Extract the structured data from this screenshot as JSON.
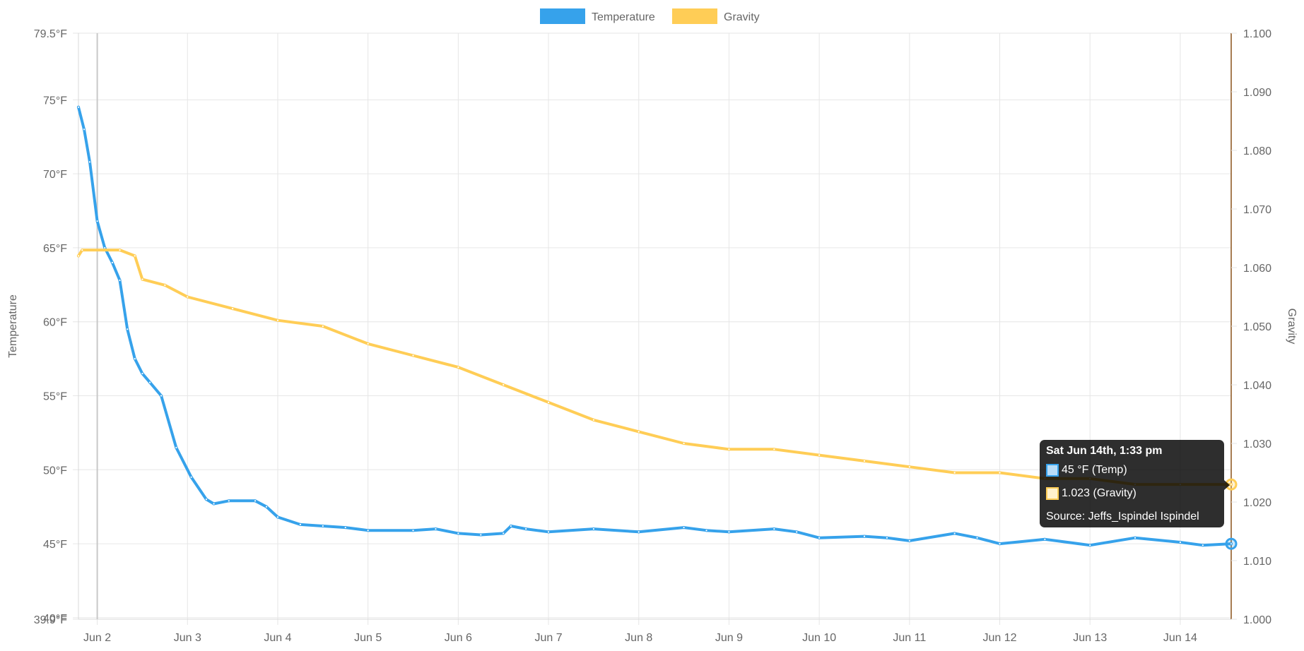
{
  "chart_data": {
    "type": "line",
    "title": "",
    "legend": {
      "position": "top",
      "items": [
        {
          "name": "Temperature",
          "color": "#36a2eb"
        },
        {
          "name": "Gravity",
          "color": "#ffcd56"
        }
      ]
    },
    "x_axis": {
      "type": "time",
      "range": [
        "2025-06-01T19:00",
        "2025-06-14T13:33"
      ],
      "tick_labels": [
        "Jun 2",
        "Jun 3",
        "Jun 4",
        "Jun 5",
        "Jun 6",
        "Jun 7",
        "Jun 8",
        "Jun 9",
        "Jun 10",
        "Jun 11",
        "Jun 12",
        "Jun 13",
        "Jun 14"
      ],
      "grid": true
    },
    "y_left": {
      "label": "Temperature",
      "unit": "°F",
      "range": [
        39.9,
        79.5
      ],
      "tick_labels": [
        "79.5°F",
        "75°F",
        "70°F",
        "65°F",
        "60°F",
        "55°F",
        "50°F",
        "45°F",
        "40°F",
        "39.9°F"
      ],
      "grid": true
    },
    "y_right": {
      "label": "Gravity",
      "range": [
        1.0,
        1.1
      ],
      "tick_labels": [
        "1.100",
        "1.090",
        "1.080",
        "1.070",
        "1.060",
        "1.050",
        "1.040",
        "1.030",
        "1.020",
        "1.010",
        "1.000"
      ]
    },
    "series": [
      {
        "name": "Temperature",
        "axis": "left",
        "color": "#36a2eb",
        "points": [
          [
            "2025-06-01T19:00",
            74.5
          ],
          [
            "2025-06-01T20:30",
            73.0
          ],
          [
            "2025-06-01T22:00",
            70.8
          ],
          [
            "2025-06-02T00:00",
            66.8
          ],
          [
            "2025-06-02T02:00",
            65.0
          ],
          [
            "2025-06-02T04:00",
            64.0
          ],
          [
            "2025-06-02T06:00",
            62.8
          ],
          [
            "2025-06-02T08:00",
            59.5
          ],
          [
            "2025-06-02T10:00",
            57.5
          ],
          [
            "2025-06-02T12:00",
            56.5
          ],
          [
            "2025-06-02T14:00",
            55.9
          ],
          [
            "2025-06-02T17:00",
            55.0
          ],
          [
            "2025-06-02T21:00",
            51.5
          ],
          [
            "2025-06-03T01:00",
            49.5
          ],
          [
            "2025-06-03T05:00",
            48.0
          ],
          [
            "2025-06-03T07:00",
            47.7
          ],
          [
            "2025-06-03T11:00",
            47.9
          ],
          [
            "2025-06-03T18:00",
            47.9
          ],
          [
            "2025-06-03T21:00",
            47.5
          ],
          [
            "2025-06-04T00:00",
            46.8
          ],
          [
            "2025-06-04T06:00",
            46.3
          ],
          [
            "2025-06-04T12:00",
            46.2
          ],
          [
            "2025-06-04T18:00",
            46.1
          ],
          [
            "2025-06-05T00:00",
            45.9
          ],
          [
            "2025-06-05T12:00",
            45.9
          ],
          [
            "2025-06-05T18:00",
            46.0
          ],
          [
            "2025-06-06T00:00",
            45.7
          ],
          [
            "2025-06-06T06:00",
            45.6
          ],
          [
            "2025-06-06T12:00",
            45.7
          ],
          [
            "2025-06-06T14:00",
            46.2
          ],
          [
            "2025-06-06T18:00",
            46.0
          ],
          [
            "2025-06-07T00:00",
            45.8
          ],
          [
            "2025-06-07T12:00",
            46.0
          ],
          [
            "2025-06-08T00:00",
            45.8
          ],
          [
            "2025-06-08T12:00",
            46.1
          ],
          [
            "2025-06-08T18:00",
            45.9
          ],
          [
            "2025-06-09T00:00",
            45.8
          ],
          [
            "2025-06-09T12:00",
            46.0
          ],
          [
            "2025-06-09T18:00",
            45.8
          ],
          [
            "2025-06-10T00:00",
            45.4
          ],
          [
            "2025-06-10T12:00",
            45.5
          ],
          [
            "2025-06-10T18:00",
            45.4
          ],
          [
            "2025-06-11T00:00",
            45.2
          ],
          [
            "2025-06-11T12:00",
            45.7
          ],
          [
            "2025-06-11T18:00",
            45.4
          ],
          [
            "2025-06-12T00:00",
            45.0
          ],
          [
            "2025-06-12T12:00",
            45.3
          ],
          [
            "2025-06-13T00:00",
            44.9
          ],
          [
            "2025-06-13T12:00",
            45.4
          ],
          [
            "2025-06-14T00:00",
            45.1
          ],
          [
            "2025-06-14T06:00",
            44.9
          ],
          [
            "2025-06-14T13:33",
            45.0
          ]
        ]
      },
      {
        "name": "Gravity",
        "axis": "right",
        "color": "#ffcd56",
        "points": [
          [
            "2025-06-01T19:00",
            1.062
          ],
          [
            "2025-06-01T20:00",
            1.063
          ],
          [
            "2025-06-02T06:00",
            1.063
          ],
          [
            "2025-06-02T10:00",
            1.062
          ],
          [
            "2025-06-02T12:00",
            1.058
          ],
          [
            "2025-06-02T18:00",
            1.057
          ],
          [
            "2025-06-03T00:00",
            1.055
          ],
          [
            "2025-06-03T12:00",
            1.053
          ],
          [
            "2025-06-04T00:00",
            1.051
          ],
          [
            "2025-06-04T12:00",
            1.05
          ],
          [
            "2025-06-05T00:00",
            1.047
          ],
          [
            "2025-06-05T12:00",
            1.045
          ],
          [
            "2025-06-06T00:00",
            1.043
          ],
          [
            "2025-06-06T12:00",
            1.04
          ],
          [
            "2025-06-07T00:00",
            1.037
          ],
          [
            "2025-06-07T12:00",
            1.034
          ],
          [
            "2025-06-08T00:00",
            1.032
          ],
          [
            "2025-06-08T12:00",
            1.03
          ],
          [
            "2025-06-09T00:00",
            1.029
          ],
          [
            "2025-06-09T12:00",
            1.029
          ],
          [
            "2025-06-10T00:00",
            1.028
          ],
          [
            "2025-06-10T12:00",
            1.027
          ],
          [
            "2025-06-11T00:00",
            1.026
          ],
          [
            "2025-06-11T12:00",
            1.025
          ],
          [
            "2025-06-12T00:00",
            1.025
          ],
          [
            "2025-06-12T12:00",
            1.024
          ],
          [
            "2025-06-13T00:00",
            1.024
          ],
          [
            "2025-06-13T12:00",
            1.023
          ],
          [
            "2025-06-14T00:00",
            1.023
          ],
          [
            "2025-06-14T13:33",
            1.023
          ]
        ]
      }
    ],
    "hover_line_at": "2025-06-02T00:00",
    "tooltip": {
      "title": "Sat Jun 14th, 1:33 pm",
      "at": "2025-06-14T13:33",
      "lines": [
        {
          "text": "45 °F (Temp)",
          "fill": "#b9ddf7",
          "border": "#36a2eb"
        },
        {
          "text": "1.023 (Gravity)",
          "fill": "#fff1cc",
          "border": "#ffcd56"
        }
      ],
      "footer": "Source: Jeffs_Ispindel Ispindel"
    }
  }
}
